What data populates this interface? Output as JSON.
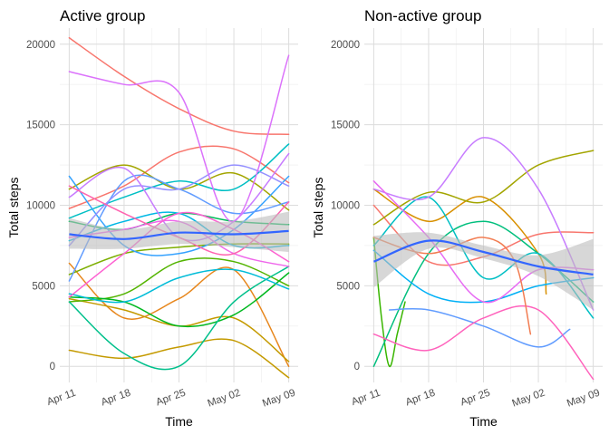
{
  "colors": {
    "panel_bg": "#ffffff",
    "grid_major": "#dcdcdc",
    "grid_minor": "#ececec",
    "trend": "#3366ff",
    "ribbon": "#bdbdbd"
  },
  "chart_data": [
    {
      "type": "line",
      "title": "Active group",
      "xlabel": "Time",
      "ylabel": "Total steps",
      "x_ticks": [
        "Apr 11",
        "Apr 18",
        "Apr 25",
        "May 02",
        "May 09"
      ],
      "y_ticks": [
        "0",
        "5000",
        "10000",
        "15000",
        "20000"
      ],
      "xlim": [
        -1.2,
        29.2
      ],
      "ylim": [
        -1000,
        21000
      ],
      "grid": true,
      "x_unit": "days since Apr 11",
      "series": [
        {
          "color": "#f8766d",
          "x": [
            0,
            7,
            14,
            21,
            28
          ],
          "y": [
            9800,
            11200,
            13300,
            13500,
            11400
          ]
        },
        {
          "color": "#f8766d",
          "x": [
            0,
            7,
            14,
            21,
            28
          ],
          "y": [
            20400,
            18000,
            16000,
            14600,
            14400
          ]
        },
        {
          "color": "#e7861b",
          "x": [
            0,
            7,
            14,
            21,
            28
          ],
          "y": [
            6400,
            3000,
            4200,
            6000,
            0
          ]
        },
        {
          "color": "#c49a00",
          "x": [
            0,
            7,
            14,
            21,
            28
          ],
          "y": [
            1000,
            500,
            1200,
            1600,
            -700
          ]
        },
        {
          "color": "#c49a00",
          "x": [
            0,
            7,
            14,
            21,
            28
          ],
          "y": [
            4200,
            3500,
            2500,
            3000,
            300
          ]
        },
        {
          "color": "#a3a500",
          "x": [
            0,
            7,
            14,
            21,
            28
          ],
          "y": [
            11000,
            12500,
            11000,
            12000,
            9700
          ]
        },
        {
          "color": "#7cae00",
          "x": [
            0,
            7,
            14,
            21,
            28
          ],
          "y": [
            5700,
            7000,
            7400,
            7600,
            7600
          ]
        },
        {
          "color": "#53b400",
          "x": [
            0,
            7,
            14,
            21,
            28
          ],
          "y": [
            4000,
            4500,
            6500,
            6500,
            5000
          ]
        },
        {
          "color": "#00b81f",
          "x": [
            0,
            7,
            14,
            21,
            28
          ],
          "y": [
            4300,
            4000,
            2500,
            3200,
            5800
          ]
        },
        {
          "color": "#00bc59",
          "x": [
            0,
            7,
            14,
            21,
            28
          ],
          "y": [
            9000,
            8500,
            9500,
            9000,
            8800
          ]
        },
        {
          "color": "#00c08b",
          "x": [
            0,
            7,
            14,
            21,
            28
          ],
          "y": [
            4000,
            800,
            0,
            4000,
            6200
          ]
        },
        {
          "color": "#00bfc4",
          "x": [
            0,
            7,
            14,
            21,
            28
          ],
          "y": [
            9200,
            10500,
            11500,
            11000,
            13800
          ]
        },
        {
          "color": "#00b8e5",
          "x": [
            0,
            7,
            14,
            21,
            28
          ],
          "y": [
            7800,
            9000,
            9500,
            7500,
            7500
          ]
        },
        {
          "color": "#00bcd8",
          "x": [
            0,
            7,
            14,
            21,
            28
          ],
          "y": [
            4500,
            4000,
            5500,
            6000,
            4800
          ]
        },
        {
          "color": "#35a2ff",
          "x": [
            0,
            7,
            14,
            21,
            28
          ],
          "y": [
            11800,
            7500,
            7000,
            8500,
            11800
          ]
        },
        {
          "color": "#619cff",
          "x": [
            0,
            7,
            14,
            21,
            28
          ],
          "y": [
            5300,
            11500,
            11000,
            9500,
            10200
          ]
        },
        {
          "color": "#9590ff",
          "x": [
            0,
            7,
            14,
            21,
            28
          ],
          "y": [
            7500,
            11000,
            11000,
            12500,
            11200
          ]
        },
        {
          "color": "#c77cff",
          "x": [
            0,
            7,
            14,
            21,
            28
          ],
          "y": [
            10500,
            12300,
            8000,
            9000,
            13200
          ]
        },
        {
          "color": "#db72fb",
          "x": [
            0,
            7,
            14,
            21,
            28
          ],
          "y": [
            18300,
            17500,
            17000,
            9000,
            19300
          ]
        },
        {
          "color": "#ef67eb",
          "x": [
            0,
            7,
            14,
            21,
            28
          ],
          "y": [
            8000,
            8500,
            9000,
            7000,
            6200
          ]
        },
        {
          "color": "#fd61d1",
          "x": [
            0,
            7,
            14,
            21,
            28
          ],
          "y": [
            4300,
            7000,
            9500,
            8500,
            6500
          ]
        },
        {
          "color": "#ff64b0",
          "x": [
            0,
            7,
            14,
            21,
            28
          ],
          "y": [
            11200,
            9500,
            8000,
            7000,
            10200
          ]
        }
      ],
      "trend": {
        "color": "#3366ff",
        "x": [
          0,
          7,
          14,
          21,
          28
        ],
        "y": [
          8200,
          7900,
          8300,
          8200,
          8400
        ],
        "lower": [
          7300,
          7300,
          7600,
          7400,
          7100
        ],
        "upper": [
          9200,
          8500,
          9000,
          9000,
          9600
        ]
      }
    },
    {
      "type": "line",
      "title": "Non-active group",
      "xlabel": "Time",
      "ylabel": "Total steps",
      "x_ticks": [
        "Apr 11",
        "Apr 18",
        "Apr 25",
        "May 02",
        "May 09"
      ],
      "y_ticks": [
        "0",
        "5000",
        "10000",
        "15000",
        "20000"
      ],
      "xlim": [
        -1.2,
        29.2
      ],
      "ylim": [
        -1000,
        21000
      ],
      "grid": true,
      "x_unit": "days since Apr 11",
      "series": [
        {
          "color": "#f8766d",
          "x": [
            0,
            7,
            14,
            21,
            28
          ],
          "y": [
            10000,
            6500,
            6800,
            8200,
            8300
          ]
        },
        {
          "color": "#d89000",
          "x": [
            0,
            7,
            14,
            21,
            22
          ],
          "y": [
            11000,
            9000,
            10500,
            7000,
            4500
          ]
        },
        {
          "color": "#a3a500",
          "x": [
            0,
            7,
            14,
            21,
            28
          ],
          "y": [
            8800,
            10800,
            10200,
            12500,
            13400
          ]
        },
        {
          "color": "#39b600",
          "x": [
            0,
            1,
            2,
            3,
            4
          ],
          "y": [
            8000,
            3000,
            0,
            2000,
            4000
          ]
        },
        {
          "color": "#00bf7d",
          "x": [
            0,
            7,
            14,
            21,
            28
          ],
          "y": [
            0,
            7000,
            9000,
            7000,
            4000
          ]
        },
        {
          "color": "#00bfc4",
          "x": [
            0,
            7,
            14,
            21,
            28
          ],
          "y": [
            7500,
            10500,
            5500,
            7000,
            3000
          ]
        },
        {
          "color": "#00b0f6",
          "x": [
            0,
            7,
            14,
            21,
            28
          ],
          "y": [
            7200,
            4500,
            4000,
            5000,
            5500
          ]
        },
        {
          "color": "#619cff",
          "x": [
            2,
            7,
            14,
            21,
            25
          ],
          "y": [
            3500,
            3500,
            2500,
            1200,
            2300
          ]
        },
        {
          "color": "#c77cff",
          "x": [
            0,
            7,
            14,
            21,
            28
          ],
          "y": [
            11000,
            10500,
            14200,
            11000,
            3500
          ]
        },
        {
          "color": "#e76bf3",
          "x": [
            0,
            7,
            14,
            21,
            28
          ],
          "y": [
            11500,
            8000,
            4000,
            6000,
            6000
          ]
        },
        {
          "color": "#ff62bc",
          "x": [
            0,
            7,
            14,
            21,
            28
          ],
          "y": [
            2000,
            1000,
            3000,
            3500,
            -800
          ]
        },
        {
          "color": "#f27d52",
          "x": [
            0,
            7,
            14,
            18,
            20
          ],
          "y": [
            8000,
            7000,
            8000,
            6500,
            2000
          ]
        }
      ],
      "trend": {
        "color": "#3366ff",
        "x": [
          0,
          7,
          14,
          21,
          28
        ],
        "y": [
          6500,
          7800,
          7100,
          6200,
          5700
        ],
        "lower": [
          4900,
          7300,
          6700,
          5600,
          3500
        ],
        "upper": [
          8100,
          8300,
          7500,
          6900,
          7900
        ]
      }
    }
  ]
}
